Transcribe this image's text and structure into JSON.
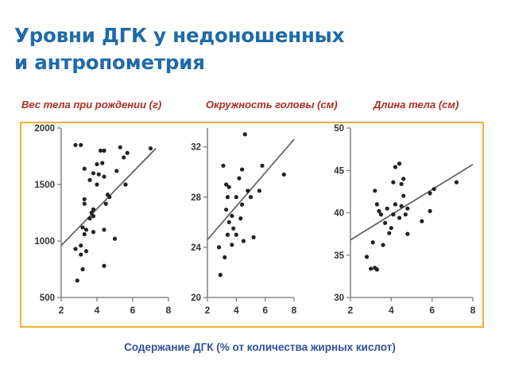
{
  "title": {
    "line1": "Уровни ДГК у недоношенных",
    "line2": "и антропометрия"
  },
  "subtitles": [
    "Вес тела при рождении (г)",
    "Окружность головы (см)",
    "Длина тела (см)"
  ],
  "x_caption": "Содержание ДГК (% от количества жирных кислот)",
  "colors": {
    "title": "#1f6aa8",
    "subtitle": "#a82e22",
    "caption": "#2f4f9a",
    "frame": "#f2b136",
    "points": "#222222",
    "trend": "#666666"
  },
  "chart_data": [
    {
      "type": "scatter",
      "xlim": [
        2,
        8
      ],
      "ylim": [
        500,
        2000
      ],
      "xticks": [
        2,
        4,
        6,
        8
      ],
      "yticks": [
        500,
        1000,
        1500,
        2000
      ],
      "trendline": [
        [
          2,
          960
        ],
        [
          7.3,
          1820
        ]
      ],
      "points": [
        [
          2.8,
          1850
        ],
        [
          3.1,
          1850
        ],
        [
          4.2,
          1800
        ],
        [
          4.4,
          1800
        ],
        [
          5.3,
          1830
        ],
        [
          7.0,
          1820
        ],
        [
          5.7,
          1780
        ],
        [
          5.5,
          1740
        ],
        [
          4.0,
          1680
        ],
        [
          4.3,
          1690
        ],
        [
          3.3,
          1640
        ],
        [
          5.1,
          1620
        ],
        [
          3.8,
          1600
        ],
        [
          4.1,
          1590
        ],
        [
          3.6,
          1540
        ],
        [
          4.4,
          1570
        ],
        [
          4.0,
          1500
        ],
        [
          5.6,
          1500
        ],
        [
          4.6,
          1410
        ],
        [
          4.7,
          1390
        ],
        [
          3.3,
          1370
        ],
        [
          3.3,
          1330
        ],
        [
          4.5,
          1330
        ],
        [
          3.8,
          1280
        ],
        [
          3.7,
          1250
        ],
        [
          3.8,
          1220
        ],
        [
          3.6,
          1200
        ],
        [
          3.2,
          1120
        ],
        [
          3.4,
          1100
        ],
        [
          3.8,
          1080
        ],
        [
          3.3,
          1060
        ],
        [
          4.4,
          1100
        ],
        [
          5.0,
          1020
        ],
        [
          3.1,
          960
        ],
        [
          2.8,
          930
        ],
        [
          3.4,
          910
        ],
        [
          3.1,
          880
        ],
        [
          3.2,
          750
        ],
        [
          4.4,
          780
        ],
        [
          2.9,
          650
        ]
      ]
    },
    {
      "type": "scatter",
      "xlim": [
        2,
        8
      ],
      "ylim": [
        20,
        33.5
      ],
      "xticks": [
        2,
        4,
        6,
        8
      ],
      "yticks": [
        20,
        24,
        28,
        32
      ],
      "trendline": [
        [
          2,
          24.6
        ],
        [
          8,
          32.6
        ]
      ],
      "points": [
        [
          4.6,
          33.0
        ],
        [
          3.1,
          30.5
        ],
        [
          4.4,
          30.2
        ],
        [
          5.8,
          30.5
        ],
        [
          7.3,
          29.8
        ],
        [
          4.2,
          29.5
        ],
        [
          3.3,
          29.0
        ],
        [
          3.5,
          28.8
        ],
        [
          4.8,
          28.5
        ],
        [
          5.6,
          28.5
        ],
        [
          3.4,
          28.0
        ],
        [
          4.0,
          28.0
        ],
        [
          5.0,
          28.0
        ],
        [
          4.4,
          27.4
        ],
        [
          3.3,
          27.0
        ],
        [
          3.7,
          26.5
        ],
        [
          4.3,
          26.3
        ],
        [
          3.5,
          26.0
        ],
        [
          3.8,
          25.5
        ],
        [
          3.4,
          25.0
        ],
        [
          4.0,
          25.0
        ],
        [
          5.2,
          24.8
        ],
        [
          4.5,
          24.5
        ],
        [
          3.7,
          24.2
        ],
        [
          2.8,
          24.0
        ],
        [
          3.2,
          23.2
        ],
        [
          2.9,
          21.8
        ]
      ]
    },
    {
      "type": "scatter",
      "xlim": [
        2,
        8
      ],
      "ylim": [
        30,
        50
      ],
      "xticks": [
        2,
        4,
        6,
        8
      ],
      "yticks": [
        30,
        35,
        40,
        45,
        50
      ],
      "trendline": [
        [
          2,
          36.8
        ],
        [
          8,
          45.7
        ]
      ],
      "points": [
        [
          4.4,
          45.8
        ],
        [
          4.2,
          45.4
        ],
        [
          4.6,
          44.0
        ],
        [
          4.1,
          43.6
        ],
        [
          4.5,
          43.4
        ],
        [
          3.2,
          42.6
        ],
        [
          6.1,
          42.8
        ],
        [
          5.9,
          42.3
        ],
        [
          7.2,
          43.6
        ],
        [
          4.6,
          42.0
        ],
        [
          3.3,
          41.0
        ],
        [
          4.2,
          41.0
        ],
        [
          4.5,
          40.8
        ],
        [
          4.8,
          40.5
        ],
        [
          3.4,
          40.2
        ],
        [
          3.8,
          40.5
        ],
        [
          4.7,
          39.8
        ],
        [
          5.9,
          40.2
        ],
        [
          3.5,
          39.8
        ],
        [
          4.1,
          39.8
        ],
        [
          4.4,
          39.4
        ],
        [
          5.5,
          39.0
        ],
        [
          3.7,
          38.8
        ],
        [
          4.0,
          38.2
        ],
        [
          3.1,
          36.5
        ],
        [
          3.6,
          36.2
        ],
        [
          3.9,
          37.6
        ],
        [
          4.8,
          37.5
        ],
        [
          2.8,
          34.8
        ],
        [
          3.0,
          33.4
        ],
        [
          3.2,
          33.5
        ],
        [
          3.3,
          33.3
        ]
      ]
    }
  ]
}
